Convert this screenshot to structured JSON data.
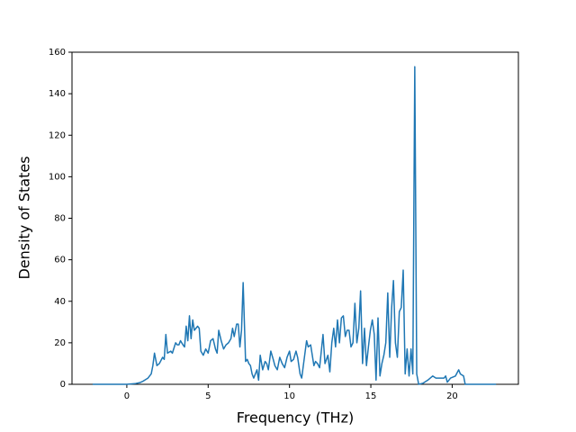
{
  "chart_data": {
    "type": "line",
    "x_label": "Frequency (THz)",
    "y_label": "Density of States",
    "color": "#1f77b4",
    "xlim": [
      -3.37,
      24.07
    ],
    "ylim": [
      0,
      160
    ],
    "xticks": [
      0,
      5,
      10,
      15,
      20
    ],
    "yticks": [
      0,
      20,
      40,
      60,
      80,
      100,
      120,
      140,
      160
    ],
    "x": [
      -2.1,
      -1,
      0,
      0.5,
      0.8,
      1.0,
      1.3,
      1.5,
      1.6,
      1.7,
      1.85,
      2.0,
      2.2,
      2.3,
      2.4,
      2.5,
      2.7,
      2.8,
      3.0,
      3.1,
      3.2,
      3.3,
      3.45,
      3.55,
      3.65,
      3.75,
      3.85,
      3.95,
      4.05,
      4.15,
      4.25,
      4.35,
      4.45,
      4.55,
      4.7,
      4.85,
      5.0,
      5.15,
      5.3,
      5.45,
      5.55,
      5.65,
      5.8,
      5.95,
      6.1,
      6.25,
      6.4,
      6.5,
      6.6,
      6.75,
      6.85,
      6.95,
      7.05,
      7.15,
      7.3,
      7.4,
      7.5,
      7.6,
      7.7,
      7.8,
      8.0,
      8.1,
      8.2,
      8.35,
      8.5,
      8.6,
      8.7,
      8.85,
      9.0,
      9.1,
      9.25,
      9.4,
      9.55,
      9.7,
      9.85,
      10.0,
      10.1,
      10.25,
      10.4,
      10.5,
      10.65,
      10.75,
      10.9,
      11.05,
      11.15,
      11.3,
      11.5,
      11.6,
      11.72,
      11.85,
      12.06,
      12.18,
      12.36,
      12.48,
      12.6,
      12.72,
      12.83,
      12.95,
      13.07,
      13.19,
      13.31,
      13.43,
      13.54,
      13.66,
      13.78,
      13.9,
      14.02,
      14.14,
      14.26,
      14.37,
      14.49,
      14.61,
      14.73,
      14.85,
      14.97,
      15.09,
      15.21,
      15.32,
      15.44,
      15.56,
      15.68,
      15.8,
      15.92,
      16.04,
      16.16,
      16.28,
      16.39,
      16.51,
      16.63,
      16.75,
      16.87,
      16.99,
      17.11,
      17.23,
      17.35,
      17.47,
      17.58,
      17.7,
      17.82,
      17.94,
      18.2,
      18.5,
      18.8,
      19.0,
      19.5,
      19.6,
      19.7,
      19.9,
      20.2,
      20.4,
      20.5,
      20.7,
      20.8,
      21.5,
      22.7
    ],
    "values": [
      0,
      0,
      0,
      0.3,
      0.8,
      1.5,
      3,
      5,
      9,
      15,
      9,
      10,
      13,
      12,
      24,
      15,
      16,
      15,
      20,
      19,
      19,
      21,
      19,
      18,
      28,
      21,
      33,
      22,
      31,
      26,
      27,
      28,
      27,
      16,
      14,
      17,
      15,
      21,
      22,
      17,
      15,
      26,
      21,
      17,
      19,
      20,
      22,
      27,
      23,
      29,
      29,
      18,
      26,
      49,
      11,
      12,
      10,
      9,
      5,
      3,
      7,
      2,
      14,
      7,
      11,
      10,
      7,
      16,
      12,
      9,
      7,
      13,
      10,
      8,
      13,
      16,
      11,
      12,
      16,
      13,
      5,
      3,
      12,
      21,
      18,
      19,
      9,
      11,
      10,
      8,
      24,
      10,
      14,
      6,
      20,
      27,
      18,
      31,
      20,
      32,
      33,
      23,
      26,
      26,
      18,
      20,
      39,
      20,
      27,
      45,
      10,
      27,
      9,
      18,
      26,
      31,
      24,
      2,
      32,
      4,
      10,
      14,
      20,
      44,
      13,
      37,
      50,
      20,
      13,
      35,
      37,
      55,
      5,
      17,
      4,
      17,
      5,
      153,
      5,
      0,
      0.5,
      2,
      4,
      3,
      3,
      4,
      1,
      3,
      4,
      7,
      5,
      4,
      0,
      0,
      0
    ]
  }
}
